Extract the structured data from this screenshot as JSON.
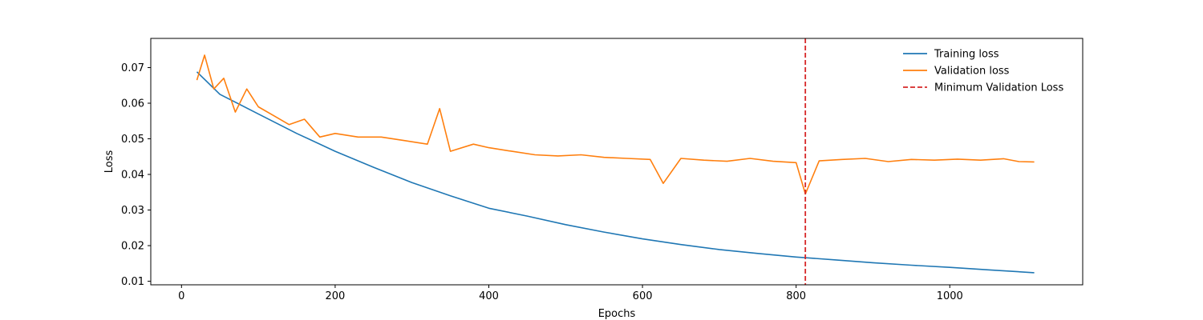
{
  "chart_data": {
    "type": "line",
    "xlabel": "Epochs",
    "ylabel": "Loss",
    "xlim": [
      -40,
      1173
    ],
    "ylim": [
      0.009,
      0.0782
    ],
    "xticks": [
      0,
      200,
      400,
      600,
      800,
      1000
    ],
    "xtick_labels": [
      "0",
      "200",
      "400",
      "600",
      "800",
      "1000"
    ],
    "yticks": [
      0.01,
      0.02,
      0.03,
      0.04,
      0.05,
      0.06,
      0.07
    ],
    "ytick_labels": [
      "0.01",
      "0.02",
      "0.03",
      "0.04",
      "0.05",
      "0.06",
      "0.07"
    ],
    "grid": false,
    "legend_position": "top-right",
    "series": [
      {
        "name": "Training loss",
        "color": "#1f77b4",
        "style": "solid",
        "x": [
          20,
          50,
          100,
          150,
          200,
          250,
          300,
          350,
          400,
          450,
          500,
          550,
          600,
          650,
          700,
          750,
          800,
          850,
          900,
          950,
          1000,
          1050,
          1110
        ],
        "values": [
          0.0688,
          0.0625,
          0.057,
          0.0515,
          0.0465,
          0.042,
          0.0377,
          0.034,
          0.0305,
          0.0283,
          0.0259,
          0.0238,
          0.0219,
          0.0203,
          0.0189,
          0.0178,
          0.0168,
          0.016,
          0.0152,
          0.0145,
          0.0139,
          0.0132,
          0.0124
        ]
      },
      {
        "name": "Validation loss",
        "color": "#ff7f0e",
        "style": "solid",
        "x": [
          20,
          30,
          42,
          55,
          70,
          85,
          100,
          120,
          140,
          160,
          180,
          200,
          230,
          260,
          290,
          320,
          336,
          350,
          380,
          400,
          430,
          460,
          490,
          520,
          550,
          580,
          610,
          627,
          650,
          680,
          710,
          740,
          770,
          800,
          812,
          830,
          860,
          890,
          920,
          950,
          980,
          1010,
          1040,
          1070,
          1090,
          1110
        ],
        "values": [
          0.0665,
          0.0735,
          0.064,
          0.067,
          0.0575,
          0.064,
          0.059,
          0.0565,
          0.054,
          0.0555,
          0.0505,
          0.0515,
          0.0505,
          0.0505,
          0.0495,
          0.0485,
          0.0585,
          0.0465,
          0.0485,
          0.0475,
          0.0465,
          0.0455,
          0.0452,
          0.0455,
          0.0448,
          0.0445,
          0.0442,
          0.0375,
          0.0445,
          0.044,
          0.0437,
          0.0445,
          0.0437,
          0.0433,
          0.0345,
          0.0438,
          0.0442,
          0.0445,
          0.0436,
          0.0442,
          0.044,
          0.0443,
          0.044,
          0.0444,
          0.0436,
          0.0435
        ]
      }
    ],
    "vlines": [
      {
        "name": "Minimum Validation Loss",
        "x": 812,
        "color": "#d62728",
        "style": "dashed"
      }
    ]
  }
}
